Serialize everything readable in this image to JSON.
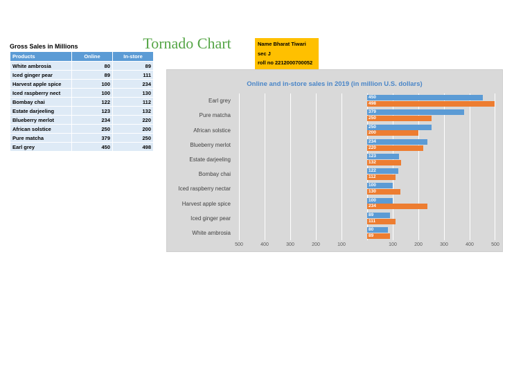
{
  "sheet_title": "Tornado Chart",
  "sheet_title_color": "#55a546",
  "note_box": {
    "bg_color": "#FFC000",
    "line1": "Name Bharat Tiwari",
    "line2": "sec J",
    "line3": "roll no 2212000700052"
  },
  "table": {
    "caption": "Gross Sales in Millions",
    "columns": [
      "Products",
      "Online",
      "In-store"
    ],
    "header_bg": "#5B9BD5",
    "row_bg": "#DEEAF6",
    "rows": [
      {
        "product": "White ambrosia",
        "online": 80,
        "in_store": 89
      },
      {
        "product": "Iced ginger pear",
        "online": 89,
        "in_store": 111
      },
      {
        "product": "Harvest apple spice",
        "online": 100,
        "in_store": 234
      },
      {
        "product": "Iced raspberry nect",
        "online": 100,
        "in_store": 130
      },
      {
        "product": "Bombay chai",
        "online": 122,
        "in_store": 112
      },
      {
        "product": "Estate darjeeling",
        "online": 123,
        "in_store": 132
      },
      {
        "product": "Blueberry merlot",
        "online": 234,
        "in_store": 220
      },
      {
        "product": "African solstice",
        "online": 250,
        "in_store": 200
      },
      {
        "product": "Pure matcha",
        "online": 379,
        "in_store": 250
      },
      {
        "product": "Earl grey",
        "online": 450,
        "in_store": 498
      }
    ]
  },
  "chart_data": {
    "type": "bar",
    "subtype": "tornado",
    "title": "Online and in-store sales in 2019 (in million U.S. dollars)",
    "title_color": "#4A86C8",
    "background": "#D9D9D9",
    "legend": "none",
    "gridlines": true,
    "value_labels_shown": true,
    "categories": [
      "Earl grey",
      "Pure matcha",
      "African solstice",
      "Blueberry merlot",
      "Estate darjeeling",
      "Bombay chai",
      "Iced raspberry nectar",
      "Harvest apple spice",
      "Iced ginger pear",
      "White ambrosia"
    ],
    "series": [
      {
        "name": "Online",
        "color": "#5B9BD5",
        "values": [
          450,
          379,
          250,
          234,
          123,
          122,
          100,
          100,
          89,
          80
        ]
      },
      {
        "name": "In-store",
        "color": "#ED7D31",
        "values": [
          498,
          250,
          200,
          220,
          132,
          112,
          130,
          234,
          111,
          89
        ]
      }
    ],
    "x_axis": {
      "max": 500,
      "tick_interval": 100,
      "tick_labels_left": [
        "500",
        "400",
        "300",
        "200",
        "100"
      ],
      "tick_labels_right": [
        "100",
        "200",
        "300",
        "400",
        "500"
      ]
    }
  }
}
